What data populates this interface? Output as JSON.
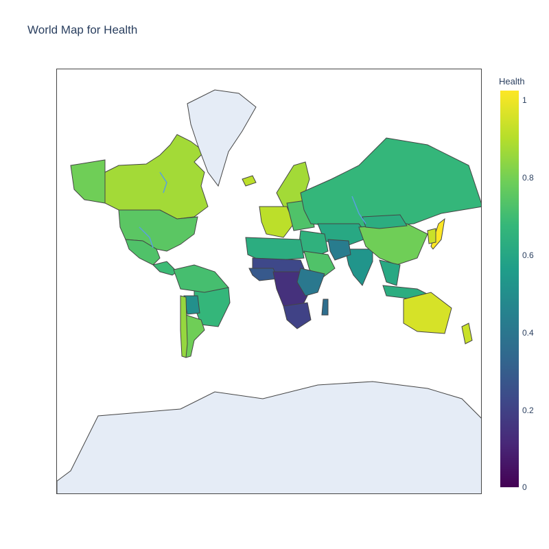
{
  "title": "World Map for Health",
  "colorbar": {
    "title": "Health",
    "range": [
      0,
      1
    ],
    "ticks": [
      "1",
      "0.8",
      "0.6",
      "0.4",
      "0.2",
      "0"
    ],
    "colorscale": [
      "#440154",
      "#482878",
      "#3e4989",
      "#31688e",
      "#26828e",
      "#1f9e89",
      "#35b779",
      "#6ece58",
      "#b5de2b",
      "#fde725"
    ]
  },
  "map": {
    "projection": "mercator",
    "land_no_data_color": "#e5ecf6",
    "border_color": "#444444",
    "lake_color": "#ffffff",
    "river_color": "#5aa0e0"
  },
  "regions": [
    {
      "name": "Canada",
      "value": 0.86
    },
    {
      "name": "Alaska",
      "value": 0.78
    },
    {
      "name": "USA",
      "value": 0.74
    },
    {
      "name": "Greenland",
      "value": null
    },
    {
      "name": "Mexico",
      "value": 0.72
    },
    {
      "name": "Central America",
      "value": 0.68
    },
    {
      "name": "Brazil",
      "value": 0.66
    },
    {
      "name": "Northern South America",
      "value": 0.7
    },
    {
      "name": "Bolivia",
      "value": 0.5
    },
    {
      "name": "Argentina",
      "value": 0.78
    },
    {
      "name": "Chile",
      "value": 0.84
    },
    {
      "name": "Scandinavia",
      "value": 0.86
    },
    {
      "name": "Western Europe",
      "value": 0.9
    },
    {
      "name": "Eastern Europe",
      "value": 0.72
    },
    {
      "name": "Russia",
      "value": 0.66
    },
    {
      "name": "Kazakhstan and Central Asia",
      "value": 0.6
    },
    {
      "name": "Middle East",
      "value": 0.64
    },
    {
      "name": "Arabian Peninsula",
      "value": 0.72
    },
    {
      "name": "North Africa",
      "value": 0.62
    },
    {
      "name": "Sahel",
      "value": 0.22
    },
    {
      "name": "West Africa",
      "value": 0.28
    },
    {
      "name": "Central Africa",
      "value": 0.14
    },
    {
      "name": "East Africa",
      "value": 0.4
    },
    {
      "name": "Southern Africa",
      "value": 0.2
    },
    {
      "name": "Madagascar",
      "value": 0.36
    },
    {
      "name": "India",
      "value": 0.52
    },
    {
      "name": "Pakistan and Afghanistan",
      "value": 0.42
    },
    {
      "name": "China",
      "value": 0.78
    },
    {
      "name": "Mongolia",
      "value": 0.62
    },
    {
      "name": "Southeast Asia",
      "value": 0.6
    },
    {
      "name": "Indonesia",
      "value": 0.62
    },
    {
      "name": "Japan",
      "value": 1.0
    },
    {
      "name": "Korea",
      "value": 0.92
    },
    {
      "name": "Australia",
      "value": 0.94
    },
    {
      "name": "New Zealand",
      "value": 0.92
    },
    {
      "name": "Iceland",
      "value": 0.9
    },
    {
      "name": "Antarctica",
      "value": null
    }
  ]
}
